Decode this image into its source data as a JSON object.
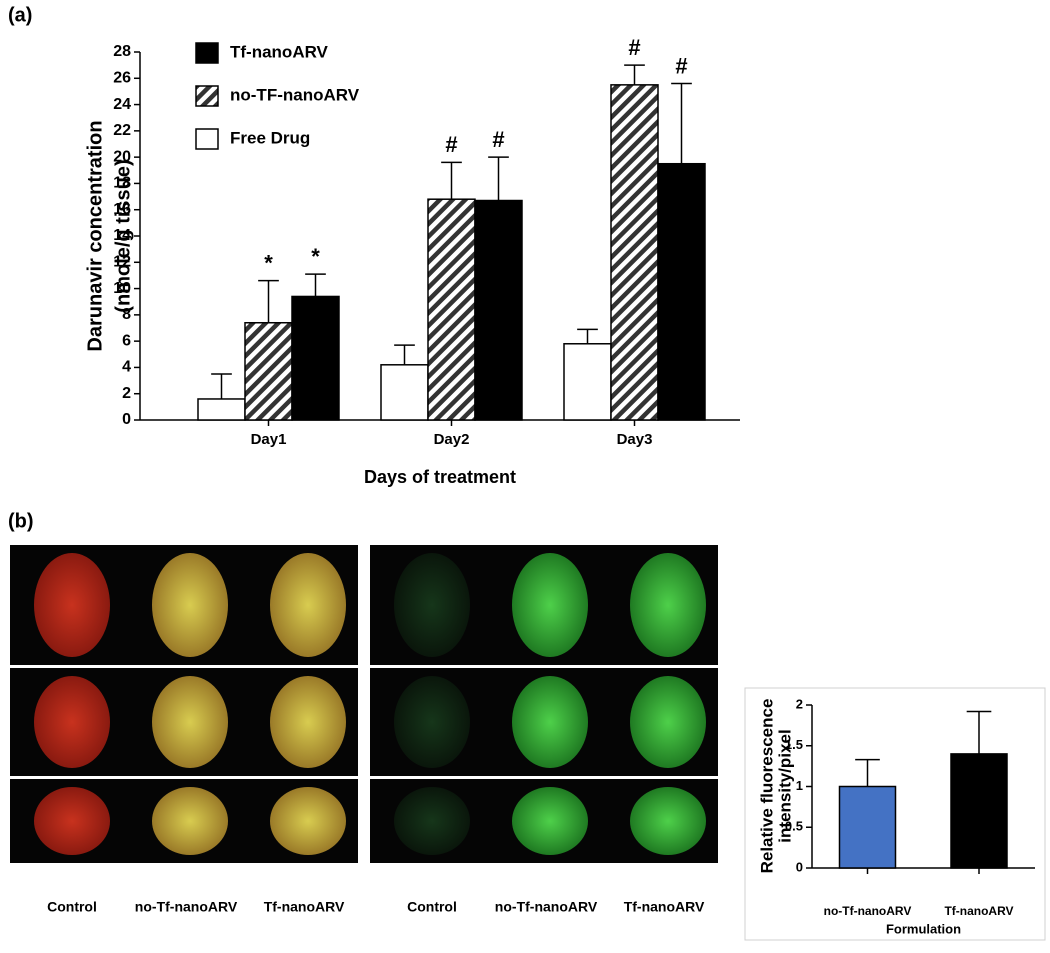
{
  "panels": {
    "a": "(a)",
    "b": "(b)"
  },
  "images": {
    "captions_left": [
      "Control",
      "no-Tf-nanoARV",
      "Tf-nanoARV"
    ],
    "captions_right": [
      "Control",
      "no-Tf-nanoARV",
      "Tf-nanoARV"
    ]
  },
  "chart_data": [
    {
      "type": "bar",
      "ylabel": [
        "Darunavir concentration",
        "(nmole/g tissue)"
      ],
      "xlabel": "Days of treatment",
      "categories": [
        "Day1",
        "Day2",
        "Day3"
      ],
      "series": [
        {
          "name": "Free Drug",
          "color": "#ffffff",
          "values": [
            1.6,
            4.2,
            5.8
          ],
          "errors": [
            1.9,
            1.5,
            1.1
          ]
        },
        {
          "name": "no-TF-nanoARV",
          "color": "hatch",
          "values": [
            7.4,
            16.8,
            25.5
          ],
          "errors": [
            3.2,
            2.8,
            1.5
          ],
          "annotations": [
            "*",
            "#",
            "#"
          ]
        },
        {
          "name": "Tf-nanoARV",
          "color": "#000000",
          "values": [
            9.4,
            16.7,
            19.5
          ],
          "errors": [
            1.7,
            3.3,
            6.1
          ],
          "annotations": [
            "*",
            "#",
            "#"
          ]
        }
      ],
      "ylim": [
        0,
        28
      ],
      "yticks": [
        0,
        2,
        4,
        6,
        8,
        10,
        12,
        14,
        16,
        18,
        20,
        22,
        24,
        26,
        28
      ],
      "grid": false,
      "legend": "upper left"
    },
    {
      "type": "bar",
      "ylabel": [
        "Relative fluorescence",
        "intensity/pixel"
      ],
      "xlabel": "Formulation",
      "categories": [
        "no-Tf-nanoARV",
        "Tf-nanoARV"
      ],
      "values": [
        1.0,
        1.4
      ],
      "errors": [
        0.33,
        0.52
      ],
      "colors": [
        "#4472c4",
        "#000000"
      ],
      "ylim": [
        0,
        2
      ],
      "yticks": [
        0,
        0.5,
        1,
        1.5,
        2
      ],
      "grid": false
    }
  ]
}
